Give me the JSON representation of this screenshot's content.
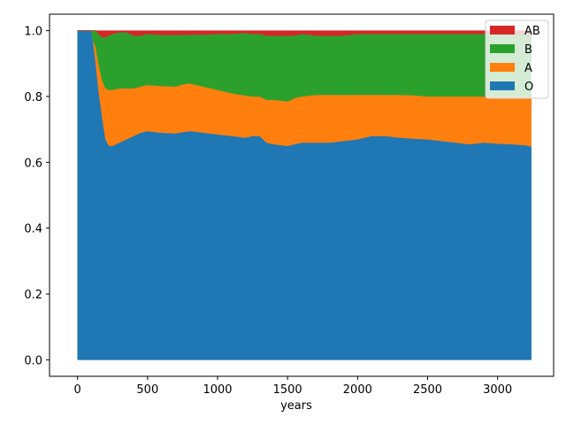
{
  "chart_data": {
    "type": "area",
    "stacked": true,
    "xlabel": "years",
    "ylabel": "",
    "title": "",
    "xlim": [
      -200,
      3400
    ],
    "ylim": [
      -0.05,
      1.05
    ],
    "x_ticks": [
      0,
      500,
      1000,
      1500,
      2000,
      2500,
      3000
    ],
    "y_ticks": [
      0.0,
      0.2,
      0.4,
      0.6,
      0.8,
      1.0
    ],
    "x_tick_labels": [
      "0",
      "500",
      "1000",
      "1500",
      "2000",
      "2500",
      "3000"
    ],
    "y_tick_labels": [
      "0.0",
      "0.2",
      "0.4",
      "0.6",
      "0.8",
      "1.0"
    ],
    "grid": false,
    "legend_position": "top-right",
    "x": [
      0,
      100,
      110,
      130,
      150,
      175,
      200,
      225,
      250,
      300,
      350,
      400,
      450,
      500,
      600,
      700,
      750,
      800,
      850,
      900,
      1000,
      1100,
      1200,
      1250,
      1300,
      1350,
      1400,
      1500,
      1550,
      1600,
      1700,
      1800,
      1900,
      2000,
      2100,
      2200,
      2300,
      2400,
      2500,
      2600,
      2700,
      2800,
      2900,
      3000,
      3100,
      3200,
      3240
    ],
    "series": [
      {
        "name": "O",
        "color": "#1f77b4",
        "values": [
          1.0,
          1.0,
          0.97,
          0.9,
          0.82,
          0.74,
          0.67,
          0.65,
          0.65,
          0.66,
          0.67,
          0.68,
          0.69,
          0.695,
          0.69,
          0.688,
          0.692,
          0.695,
          0.693,
          0.69,
          0.685,
          0.68,
          0.675,
          0.68,
          0.68,
          0.66,
          0.655,
          0.65,
          0.655,
          0.66,
          0.66,
          0.66,
          0.665,
          0.67,
          0.68,
          0.68,
          0.675,
          0.672,
          0.67,
          0.665,
          0.66,
          0.655,
          0.66,
          0.657,
          0.655,
          0.652,
          0.648
        ]
      },
      {
        "name": "A",
        "values": [
          0.0,
          0.0,
          0.0,
          0.05,
          0.08,
          0.11,
          0.155,
          0.17,
          0.17,
          0.165,
          0.155,
          0.145,
          0.14,
          0.14,
          0.142,
          0.142,
          0.145,
          0.145,
          0.142,
          0.14,
          0.135,
          0.13,
          0.128,
          0.12,
          0.12,
          0.13,
          0.135,
          0.135,
          0.14,
          0.14,
          0.145,
          0.145,
          0.14,
          0.135,
          0.125,
          0.125,
          0.13,
          0.132,
          0.13,
          0.135,
          0.14,
          0.145,
          0.14,
          0.143,
          0.145,
          0.148,
          0.15
        ],
        "color": "#ff7f0e"
      },
      {
        "name": "B",
        "color": "#2ca02c",
        "values": [
          0.0,
          0.0,
          0.03,
          0.05,
          0.09,
          0.13,
          0.155,
          0.165,
          0.17,
          0.17,
          0.17,
          0.16,
          0.155,
          0.155,
          0.155,
          0.157,
          0.15,
          0.148,
          0.153,
          0.158,
          0.17,
          0.18,
          0.19,
          0.19,
          0.19,
          0.195,
          0.195,
          0.2,
          0.19,
          0.19,
          0.18,
          0.18,
          0.18,
          0.185,
          0.185,
          0.185,
          0.185,
          0.186,
          0.19,
          0.19,
          0.19,
          0.19,
          0.19,
          0.19,
          0.19,
          0.19,
          0.192
        ]
      },
      {
        "name": "AB",
        "color": "#d62728",
        "values": [
          0.0,
          0.0,
          0.0,
          0.0,
          0.01,
          0.02,
          0.02,
          0.015,
          0.01,
          0.005,
          0.005,
          0.015,
          0.015,
          0.01,
          0.013,
          0.013,
          0.013,
          0.012,
          0.012,
          0.012,
          0.01,
          0.01,
          0.007,
          0.01,
          0.01,
          0.015,
          0.015,
          0.015,
          0.015,
          0.01,
          0.015,
          0.015,
          0.015,
          0.01,
          0.01,
          0.01,
          0.01,
          0.01,
          0.01,
          0.01,
          0.01,
          0.01,
          0.01,
          0.01,
          0.01,
          0.01,
          0.01
        ]
      }
    ]
  }
}
